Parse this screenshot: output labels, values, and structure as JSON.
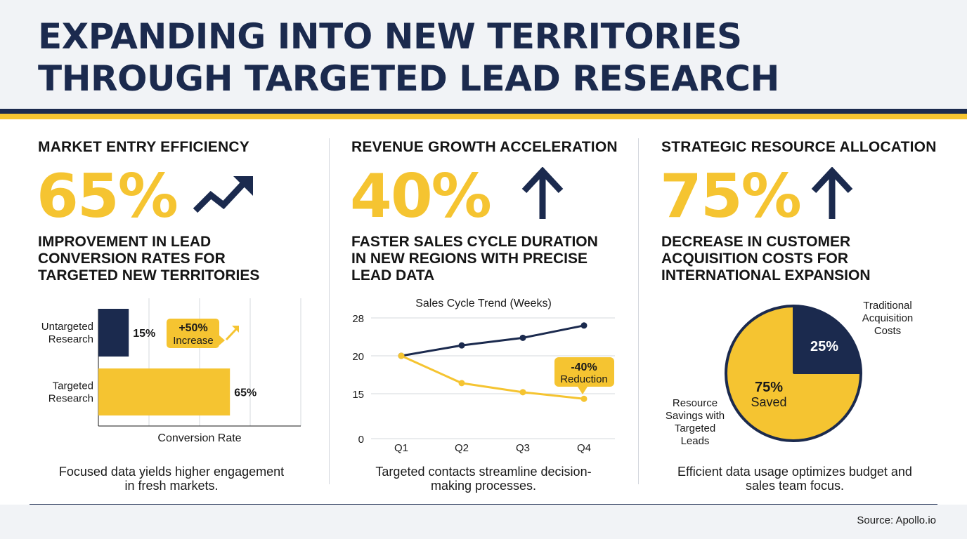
{
  "title": {
    "line1": "EXPANDING INTO NEW TERRITORIES",
    "line2": "THROUGH TARGETED LEAD RESEARCH"
  },
  "colors": {
    "navy": "#1b2a4e",
    "yellow": "#f5c431",
    "grid": "#d4d8de"
  },
  "panels": [
    {
      "title": "MARKET ENTRY EFFICIENCY",
      "big_value": "65%",
      "icon": "trend-up-arrow-icon",
      "subtitle_lines": [
        "IMPROVEMENT IN LEAD",
        "CONVERSION RATES FOR",
        "TARGETED NEW TERRITORIES"
      ],
      "footer_lines": [
        "Focused data yields higher engagement",
        "in fresh markets."
      ]
    },
    {
      "title": "REVENUE GROWTH ACCELERATION",
      "big_value": "40%",
      "icon": "arrow-up-icon",
      "subtitle_lines": [
        "FASTER SALES CYCLE DURATION",
        "IN NEW REGIONS WITH PRECISE",
        "LEAD DATA"
      ],
      "footer_lines": [
        "Targeted contacts streamline decision-",
        "making processes."
      ]
    },
    {
      "title": "STRATEGIC RESOURCE ALLOCATION",
      "big_value": "75%",
      "icon": "arrow-up-icon",
      "subtitle_lines": [
        "DECREASE IN CUSTOMER",
        "ACQUISITION COSTS FOR",
        "INTERNATIONAL EXPANSION"
      ],
      "footer_lines": [
        "Efficient data usage optimizes budget and",
        "sales team focus."
      ]
    }
  ],
  "chart_data": [
    {
      "type": "bar",
      "orientation": "horizontal",
      "categories": [
        "Untargeted Research",
        "Targeted Research"
      ],
      "category_label_lines": [
        [
          "Untargeted",
          "Research"
        ],
        [
          "Targeted",
          "Research"
        ]
      ],
      "values": [
        15,
        65
      ],
      "value_labels": [
        "15%",
        "65%"
      ],
      "xlabel": "Conversion Rate",
      "xlim": [
        0,
        100
      ],
      "grid": true,
      "colors": [
        "#1b2a4e",
        "#f5c431"
      ],
      "annotation": {
        "lines": [
          "+50%",
          "Increase"
        ],
        "icon": "diagonal-arrow-icon"
      }
    },
    {
      "type": "line",
      "title": "Sales Cycle Trend (Weeks)",
      "categories": [
        "Q1",
        "Q2",
        "Q3",
        "Q4"
      ],
      "y_ticks": [
        0,
        15,
        20,
        28
      ],
      "series": [
        {
          "color": "#1b2a4e",
          "values": [
            20,
            22.2,
            23.8,
            26.4
          ]
        },
        {
          "color": "#f5c431",
          "values": [
            20,
            16.4,
            15.2,
            13.3
          ]
        }
      ],
      "grid": true,
      "annotation": {
        "lines": [
          "-40%",
          "Reduction"
        ]
      }
    },
    {
      "type": "pie",
      "slices": [
        {
          "value": 25,
          "label": "25%",
          "color": "#1b2a4e",
          "callout_lines": [
            "Traditional",
            "Acquisition",
            "Costs"
          ]
        },
        {
          "value": 75,
          "label_lines": [
            "75%",
            "Saved"
          ],
          "color": "#f5c431",
          "callout_lines": [
            "Resource",
            "Savings with",
            "Targeted",
            "Leads"
          ]
        }
      ]
    }
  ],
  "source": "Source: Apollo.io"
}
